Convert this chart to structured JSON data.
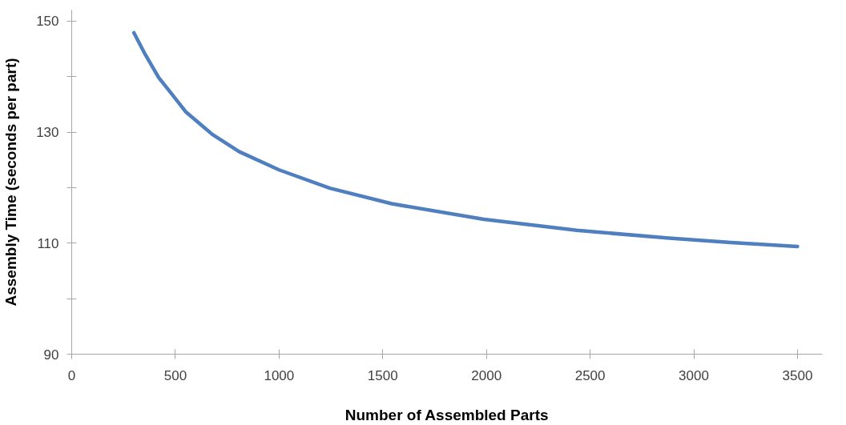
{
  "chart_data": {
    "type": "line",
    "xlabel": "Number of Assembled Parts",
    "ylabel": "Assembly Time (seconds per part)",
    "xlim": [
      0,
      3620
    ],
    "xticks": [
      0,
      500,
      1000,
      1500,
      2000,
      2500,
      3000,
      3500
    ],
    "ylim": [
      90,
      152
    ],
    "yticks": [
      90,
      {
        "value": 100,
        "label": null
      },
      110,
      {
        "value": 120,
        "label": null
      },
      130,
      {
        "value": 140,
        "label": null
      },
      150
    ],
    "grid": false,
    "marker": "none",
    "line_style": "solid",
    "series": [
      {
        "color": "#4f7fbf",
        "x": [
          300,
          356,
          420,
          484,
          549,
          678,
          807,
          1000,
          1245,
          1543,
          1988,
          2436,
          2881,
          3179,
          3500
        ],
        "values": [
          147.9,
          143.9,
          139.8,
          136.8,
          133.7,
          129.6,
          126.5,
          123.2,
          119.9,
          117.1,
          114.3,
          112.3,
          110.9,
          110.1,
          109.4
        ]
      }
    ]
  }
}
